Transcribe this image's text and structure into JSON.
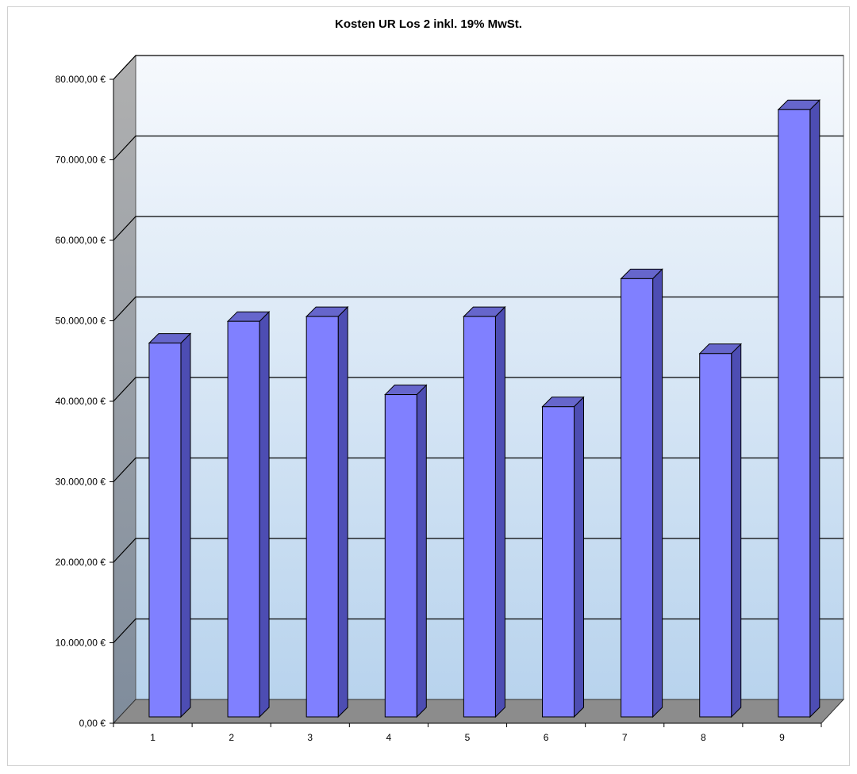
{
  "chart_data": {
    "type": "bar",
    "title": "Kosten UR Los 2 inkl. 19% MwSt.",
    "xlabel": "",
    "ylabel": "",
    "categories": [
      "1",
      "2",
      "3",
      "4",
      "5",
      "6",
      "7",
      "8",
      "9"
    ],
    "values": [
      46000,
      48700,
      49300,
      39600,
      49300,
      38100,
      54000,
      44700,
      75000
    ],
    "ylim": [
      0,
      80000
    ],
    "ytick_values": [
      0,
      10000,
      20000,
      30000,
      40000,
      50000,
      60000,
      70000,
      80000
    ],
    "ytick_labels": [
      "0,00 €",
      "10.000,00 €",
      "20.000,00 €",
      "30.000,00 €",
      "40.000,00 €",
      "50.000,00 €",
      "60.000,00 €",
      "70.000,00 €",
      "80.000,00 €"
    ],
    "grid": true,
    "legend": "none",
    "style": "3d-column",
    "colors": {
      "bar_front": "#8080ff",
      "bar_side": "#4d4db3",
      "bar_top": "#6666cc",
      "floor": "#8c8c8c",
      "side_wall": "#9aa5b3",
      "back_wall_top": "#f6f9fd",
      "back_wall_bottom": "#b8d3ed"
    }
  }
}
